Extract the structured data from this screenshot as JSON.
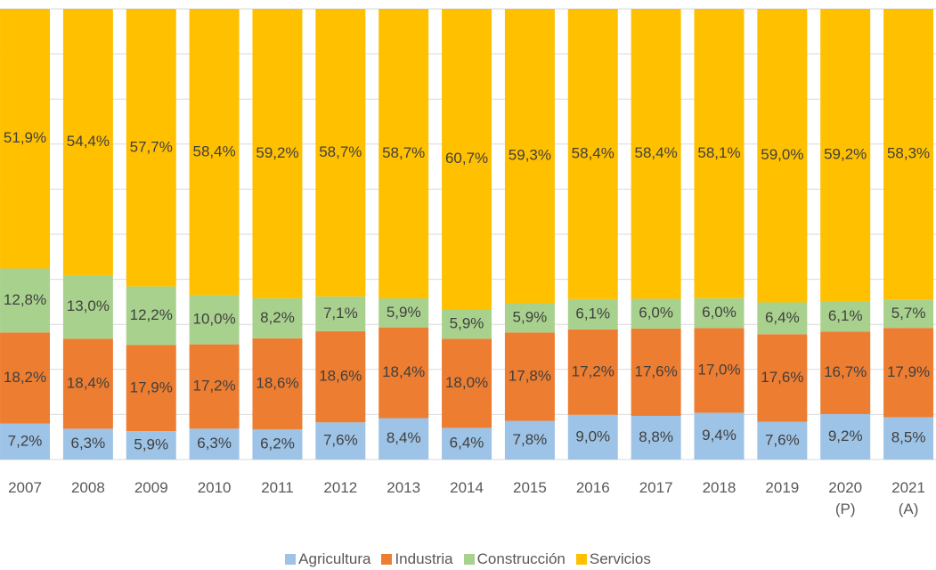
{
  "chart_data": {
    "type": "bar",
    "stacked": "percent",
    "categories": [
      "2007",
      "2008",
      "2009",
      "2010",
      "2011",
      "2012",
      "2013",
      "2014",
      "2015",
      "2016",
      "2017",
      "2018",
      "2019",
      "2020 (P)",
      "2021 (A)"
    ],
    "series": [
      {
        "name": "Agricultura",
        "color": "#9dc3e6",
        "values": [
          7.2,
          6.3,
          5.9,
          6.3,
          6.2,
          7.6,
          8.4,
          6.4,
          7.8,
          9.0,
          8.8,
          9.4,
          7.6,
          9.2,
          8.5
        ],
        "value_labels": [
          "7,2%",
          "6,3%",
          "5,9%",
          "6,3%",
          "6,2%",
          "7,6%",
          "8,4%",
          "6,4%",
          "7,8%",
          "9,0%",
          "8,8%",
          "9,4%",
          "7,6%",
          "9,2%",
          "8,5%"
        ]
      },
      {
        "name": "Industria",
        "color": "#ed7d31",
        "values": [
          18.2,
          18.4,
          17.9,
          17.2,
          18.6,
          18.6,
          18.4,
          18.0,
          17.8,
          17.2,
          17.6,
          17.0,
          17.6,
          16.7,
          17.9
        ],
        "value_labels": [
          "18,2%",
          "18,4%",
          "17,9%",
          "17,2%",
          "18,6%",
          "18,6%",
          "18,4%",
          "18,0%",
          "17,8%",
          "17,2%",
          "17,6%",
          "17,0%",
          "17,6%",
          "16,7%",
          "17,9%"
        ]
      },
      {
        "name": "Construcción",
        "color": "#a9d18e",
        "values": [
          12.8,
          13.0,
          12.2,
          10.0,
          8.2,
          7.1,
          5.9,
          5.9,
          5.9,
          6.1,
          6.0,
          6.0,
          6.4,
          6.1,
          5.7
        ],
        "value_labels": [
          "12,8%",
          "13,0%",
          "12,2%",
          "10,0%",
          "8,2%",
          "7,1%",
          "5,9%",
          "5,9%",
          "5,9%",
          "6,1%",
          "6,0%",
          "6,0%",
          "6,4%",
          "6,1%",
          "5,7%"
        ]
      },
      {
        "name": "Servicios",
        "color": "#ffc000",
        "values": [
          51.9,
          54.4,
          57.7,
          58.4,
          59.2,
          58.7,
          58.7,
          60.7,
          59.3,
          58.4,
          58.4,
          58.1,
          59.0,
          59.2,
          58.3
        ],
        "value_labels": [
          "51,9%",
          "54,4%",
          "57,7%",
          "58,4%",
          "59,2%",
          "58,7%",
          "58,7%",
          "60,7%",
          "59,3%",
          "58,4%",
          "58,4%",
          "58,1%",
          "59,0%",
          "59,2%",
          "58,3%"
        ]
      }
    ],
    "ylim": [
      0,
      100
    ],
    "yticks": [
      0,
      10,
      20,
      30,
      40,
      50,
      60,
      70,
      80,
      90,
      100
    ],
    "grid": true,
    "legend": "bottom"
  }
}
